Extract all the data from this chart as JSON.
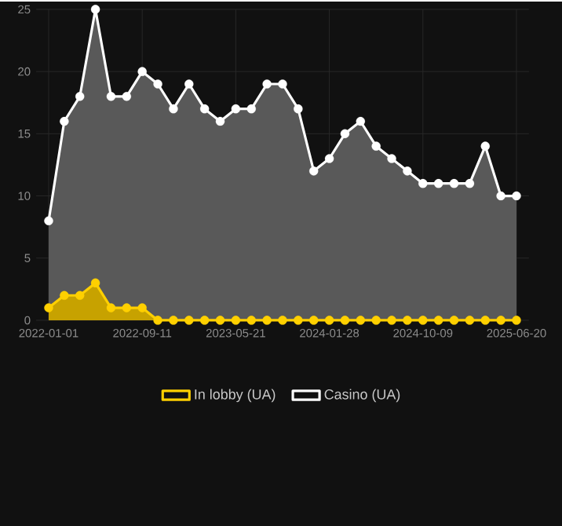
{
  "chart_data": {
    "type": "area",
    "categories": [
      "2022-01-01",
      null,
      null,
      null,
      null,
      null,
      "2022-09-11",
      null,
      null,
      null,
      null,
      null,
      "2023-05-21",
      null,
      null,
      null,
      null,
      null,
      "2024-01-28",
      null,
      null,
      null,
      null,
      null,
      "2024-10-09",
      null,
      null,
      null,
      null,
      null,
      "2025-06-20"
    ],
    "series": [
      {
        "name": "In lobby (UA)",
        "color": "#ffd000",
        "values": [
          1,
          2,
          2,
          3,
          1,
          1,
          1,
          0,
          0,
          0,
          0,
          0,
          0,
          0,
          0,
          0,
          0,
          0,
          0,
          0,
          0,
          0,
          0,
          0,
          0,
          0,
          0,
          0,
          0,
          0,
          0
        ]
      },
      {
        "name": "Casino (UA)",
        "color": "#ffffff",
        "values": [
          8,
          16,
          18,
          25,
          18,
          18,
          20,
          19,
          17,
          19,
          17,
          16,
          17,
          17,
          19,
          19,
          17,
          12,
          13,
          15,
          16,
          14,
          13,
          12,
          11,
          11,
          11,
          11,
          14,
          10,
          10
        ]
      }
    ],
    "ylim": [
      0,
      25
    ],
    "yticks": [
      0,
      5,
      10,
      15,
      20,
      25
    ],
    "grid": true,
    "legend": "bottom",
    "marker": "circle",
    "line_style": "solid"
  }
}
